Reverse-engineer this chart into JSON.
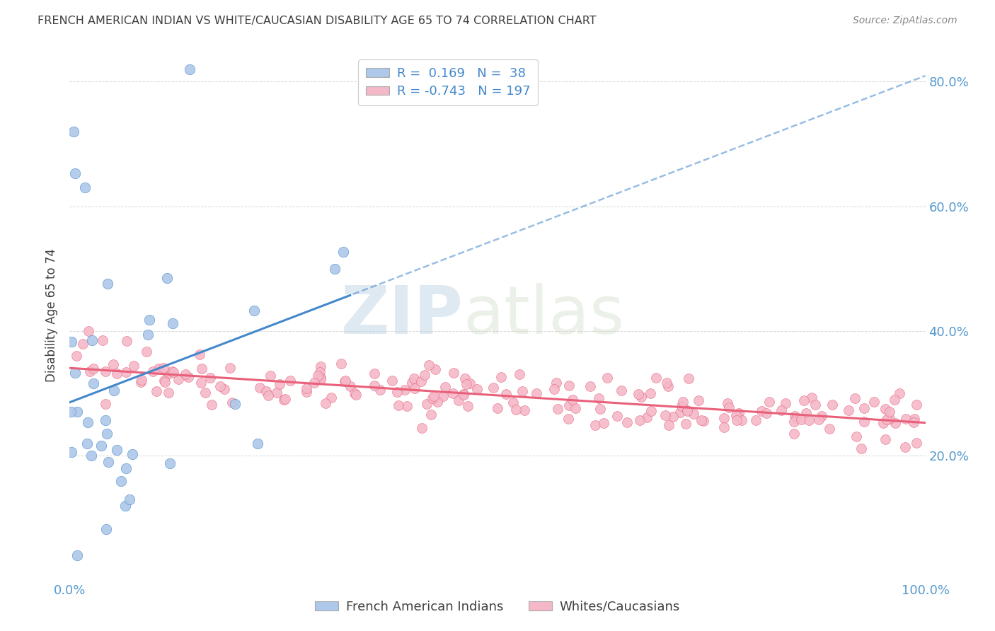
{
  "title": "FRENCH AMERICAN INDIAN VS WHITE/CAUCASIAN DISABILITY AGE 65 TO 74 CORRELATION CHART",
  "source": "Source: ZipAtlas.com",
  "ylabel": "Disability Age 65 to 74",
  "xlim": [
    0.0,
    1.0
  ],
  "ylim": [
    0.0,
    0.85
  ],
  "blue_R": 0.169,
  "blue_N": 38,
  "pink_R": -0.743,
  "pink_N": 197,
  "blue_color": "#adc8e8",
  "blue_line_color": "#4488cc",
  "blue_edge_color": "#4488cc",
  "pink_color": "#f4b8c8",
  "pink_line_color": "#e8607a",
  "pink_edge_color": "#e8607a",
  "legend_blue_label": "French American Indians",
  "legend_pink_label": "Whites/Caucasians",
  "legend_text_blue": "R =  0.169   N =  38",
  "legend_text_pink": "R = -0.743   N = 197",
  "watermark_zip": "ZIP",
  "watermark_atlas": "atlas",
  "background_color": "#ffffff",
  "grid_color": "#d8d8d8",
  "title_color": "#404040",
  "axis_tick_color": "#5599cc",
  "seed": 99
}
